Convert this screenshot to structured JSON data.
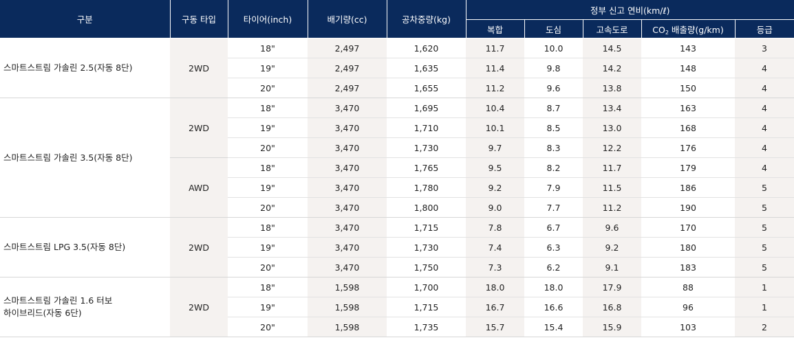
{
  "header": {
    "category": "구분",
    "drive_type": "구동 타입",
    "tire": "타이어(inch)",
    "displacement": "배기량(cc)",
    "curb_weight": "공차중량(kg)",
    "fuel_group": "정부 신고 연비(km/ℓ)",
    "combined": "복합",
    "city": "도심",
    "highway": "고속도로",
    "co2_prefix": "CO",
    "co2_sub": "2",
    "co2_suffix": " 배출량(g/km)",
    "grade": "등급"
  },
  "groups": [
    {
      "model": "스마트스트림 가솔린 2.5(자동 8단)",
      "drives": [
        {
          "drive": "2WD",
          "rows": [
            {
              "tire": "18\"",
              "cc": "2,497",
              "kg": "1,620",
              "comb": "11.7",
              "city": "10.0",
              "hwy": "14.5",
              "co2": "143",
              "grade": "3"
            },
            {
              "tire": "19\"",
              "cc": "2,497",
              "kg": "1,635",
              "comb": "11.4",
              "city": "9.8",
              "hwy": "14.2",
              "co2": "148",
              "grade": "4"
            },
            {
              "tire": "20\"",
              "cc": "2,497",
              "kg": "1,655",
              "comb": "11.2",
              "city": "9.6",
              "hwy": "13.8",
              "co2": "150",
              "grade": "4"
            }
          ]
        }
      ]
    },
    {
      "model": "스마트스트림 가솔린 3.5(자동 8단)",
      "drives": [
        {
          "drive": "2WD",
          "rows": [
            {
              "tire": "18\"",
              "cc": "3,470",
              "kg": "1,695",
              "comb": "10.4",
              "city": "8.7",
              "hwy": "13.4",
              "co2": "163",
              "grade": "4"
            },
            {
              "tire": "19\"",
              "cc": "3,470",
              "kg": "1,710",
              "comb": "10.1",
              "city": "8.5",
              "hwy": "13.0",
              "co2": "168",
              "grade": "4"
            },
            {
              "tire": "20\"",
              "cc": "3,470",
              "kg": "1,730",
              "comb": "9.7",
              "city": "8.3",
              "hwy": "12.2",
              "co2": "176",
              "grade": "4"
            }
          ]
        },
        {
          "drive": "AWD",
          "rows": [
            {
              "tire": "18\"",
              "cc": "3,470",
              "kg": "1,765",
              "comb": "9.5",
              "city": "8.2",
              "hwy": "11.7",
              "co2": "179",
              "grade": "4"
            },
            {
              "tire": "19\"",
              "cc": "3,470",
              "kg": "1,780",
              "comb": "9.2",
              "city": "7.9",
              "hwy": "11.5",
              "co2": "186",
              "grade": "5"
            },
            {
              "tire": "20\"",
              "cc": "3,470",
              "kg": "1,800",
              "comb": "9.0",
              "city": "7.7",
              "hwy": "11.2",
              "co2": "190",
              "grade": "5"
            }
          ]
        }
      ]
    },
    {
      "model": "스마트스트림 LPG 3.5(자동 8단)",
      "drives": [
        {
          "drive": "2WD",
          "rows": [
            {
              "tire": "18\"",
              "cc": "3,470",
              "kg": "1,715",
              "comb": "7.8",
              "city": "6.7",
              "hwy": "9.6",
              "co2": "170",
              "grade": "5"
            },
            {
              "tire": "19\"",
              "cc": "3,470",
              "kg": "1,730",
              "comb": "7.4",
              "city": "6.3",
              "hwy": "9.2",
              "co2": "180",
              "grade": "5"
            },
            {
              "tire": "20\"",
              "cc": "3,470",
              "kg": "1,750",
              "comb": "7.3",
              "city": "6.2",
              "hwy": "9.1",
              "co2": "183",
              "grade": "5"
            }
          ]
        }
      ]
    },
    {
      "model": "스마트스트림 가솔린 1.6 터보\n하이브리드(자동 6단)",
      "drives": [
        {
          "drive": "2WD",
          "rows": [
            {
              "tire": "18\"",
              "cc": "1,598",
              "kg": "1,700",
              "comb": "18.0",
              "city": "18.0",
              "hwy": "17.9",
              "co2": "88",
              "grade": "1"
            },
            {
              "tire": "19\"",
              "cc": "1,598",
              "kg": "1,715",
              "comb": "16.7",
              "city": "16.6",
              "hwy": "16.8",
              "co2": "96",
              "grade": "1"
            },
            {
              "tire": "20\"",
              "cc": "1,598",
              "kg": "1,735",
              "comb": "15.7",
              "city": "15.4",
              "hwy": "15.9",
              "co2": "103",
              "grade": "2"
            }
          ]
        }
      ]
    }
  ]
}
